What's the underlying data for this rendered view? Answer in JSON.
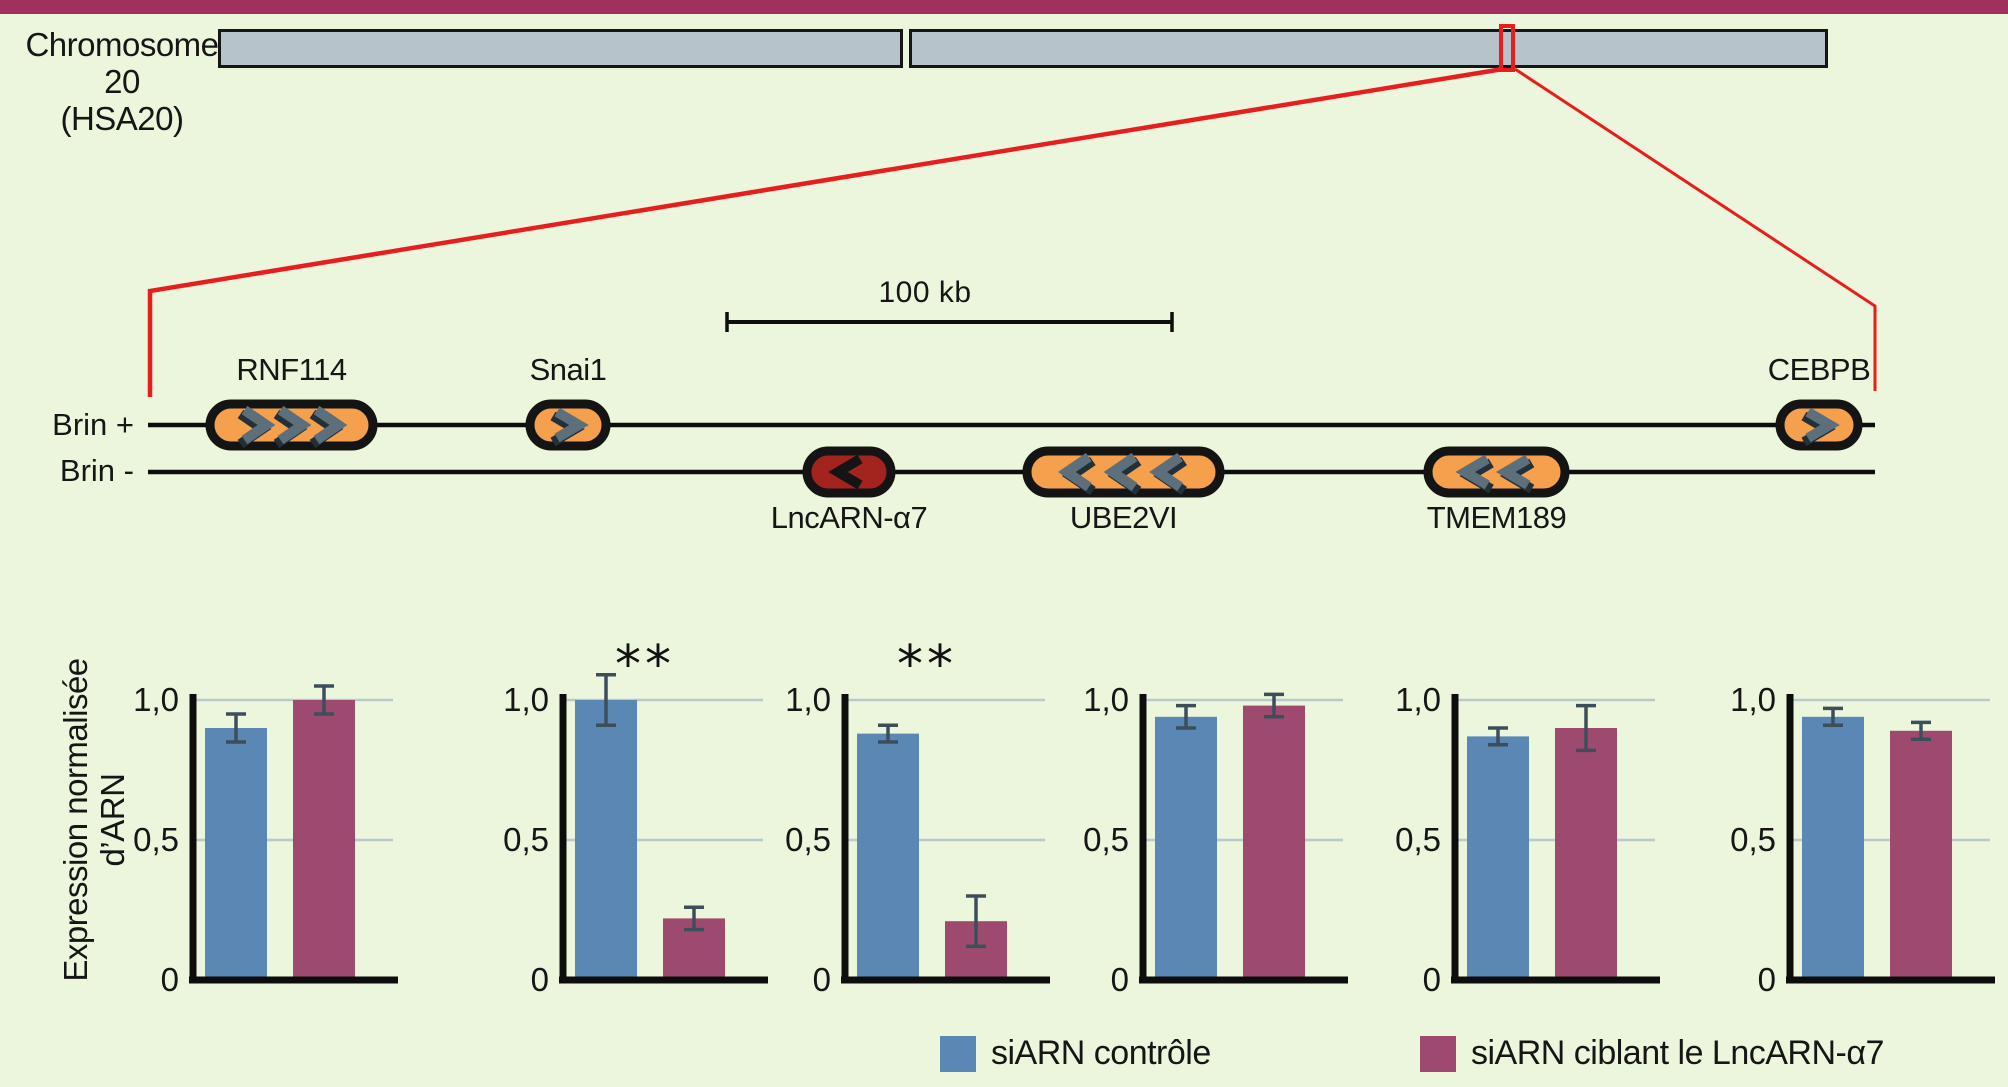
{
  "figure": {
    "background": "#ebf6dc",
    "top_bar_color": "#a0315f"
  },
  "chromosome": {
    "title_line1": "Chromosome 20",
    "title_line2": "(HSA20)",
    "body_color": "#b6c3ca",
    "outline_color": "#161616",
    "highlight_box_color": "#e81e1e"
  },
  "locus": {
    "scale_bar_label": "100 kb",
    "strand_plus_label": "Brin +",
    "strand_minus_label": "Brin -",
    "gene_fill": "#f5a04c",
    "lncrna_fill": "#a3231f",
    "chevron_color": "#5d6f7b",
    "genes": [
      {
        "name": "RNF114",
        "strand": "+",
        "transcription_direction": "right",
        "chevrons": 3,
        "kind": "gene"
      },
      {
        "name": "Snai1",
        "strand": "+",
        "transcription_direction": "right",
        "chevrons": 1,
        "kind": "gene"
      },
      {
        "name": "LncARN-α7",
        "strand": "-",
        "transcription_direction": "left",
        "chevrons": 1,
        "kind": "lncrna"
      },
      {
        "name": "UBE2VI",
        "strand": "-",
        "transcription_direction": "left",
        "chevrons": 3,
        "kind": "gene"
      },
      {
        "name": "TMEM189",
        "strand": "-",
        "transcription_direction": "left",
        "chevrons": 2,
        "kind": "gene"
      },
      {
        "name": "CEBPB",
        "strand": "+",
        "transcription_direction": "right",
        "chevrons": 1,
        "kind": "gene"
      }
    ]
  },
  "chart_data": {
    "type": "bar",
    "categories": [
      "RNF114",
      "Snai1",
      "LncARN-α7",
      "UBE2VI",
      "TMEM189",
      "CEBPB"
    ],
    "series": [
      {
        "name": "siARN contrôle",
        "color": "#5b87b5",
        "values": [
          0.9,
          1.0,
          0.88,
          0.94,
          0.87,
          0.94
        ],
        "errors": [
          0.05,
          0.09,
          0.03,
          0.04,
          0.03,
          0.03
        ]
      },
      {
        "name": "siARN ciblant le LncARN-α7",
        "color": "#9e4a6e",
        "values": [
          1.0,
          0.22,
          0.21,
          0.98,
          0.9,
          0.89
        ],
        "errors": [
          0.05,
          0.04,
          0.09,
          0.04,
          0.08,
          0.03
        ]
      }
    ],
    "significance": [
      "",
      "**",
      "**",
      "",
      "",
      ""
    ],
    "ylabel_line1": "Expression normalisée",
    "ylabel_line2": "d’ARN",
    "yticks": [
      "1,0",
      "0,5",
      "0"
    ],
    "ytick_values": [
      1.0,
      0.5,
      0
    ],
    "ylim": [
      0,
      1.1
    ],
    "grid": true,
    "gridline_color": "#b9c9ce",
    "error_bar_color": "#3d4e5b",
    "axis_color": "#0d0d0d",
    "legend_position": "bottom"
  },
  "legend": {
    "items": [
      {
        "label": "siARN contrôle",
        "color": "#5b87b5"
      },
      {
        "label": "siARN ciblant le LncARN-α7",
        "color": "#9e4a6e"
      }
    ]
  }
}
